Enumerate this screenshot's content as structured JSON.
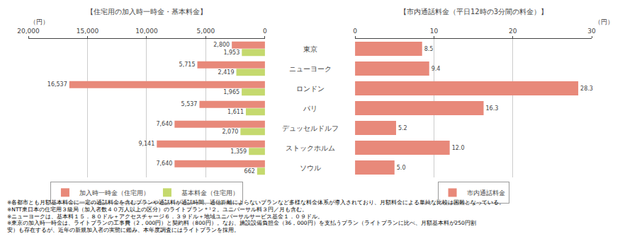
{
  "chart_data": [
    {
      "type": "bar",
      "orientation": "horizontal",
      "title": "【住宅用の加入時一時金・基本料金】",
      "xlabel": "（円）",
      "categories": [
        "東京",
        "ニューヨーク",
        "ロンドン",
        "パリ",
        "デュッセルドルフ",
        "ストックホルム",
        "ソウル"
      ],
      "series": [
        {
          "name": "加入時一時金（住宅用）",
          "color": "#e8897a",
          "values": [
            2800,
            5715,
            16537,
            5537,
            7640,
            9141,
            7640
          ],
          "value_labels": [
            "2,800",
            "5,715",
            "16,537",
            "5,537",
            "7,640",
            "9,141",
            "7,640"
          ]
        },
        {
          "name": "基本料金（住宅用）",
          "color": "#c5d96e",
          "values": [
            1953,
            2419,
            1965,
            1611,
            2070,
            1359,
            662
          ],
          "value_labels": [
            "1,953",
            "2,419",
            "1,965",
            "1,611",
            "2,070",
            "1,359",
            "662"
          ]
        }
      ],
      "xlim": [
        20000,
        0
      ],
      "xticks": [
        {
          "value": 20000,
          "label": "20,000"
        },
        {
          "value": 15000,
          "label": "15,000"
        },
        {
          "value": 10000,
          "label": "10,000"
        },
        {
          "value": 5000,
          "label": "5,000"
        },
        0
      ],
      "grid": true,
      "data_labels": true,
      "legend": "bottom",
      "annotations": [
        "※各都市とも月額基本料金に一定の通話料金を含むプランや通話料が通話時間、通信距離によらないプランなど多様な料金体系が導入されており、月額料金による単純な比較は困難となっている。",
        "※NTT東日本の住宅用３級局（加入者数４０万人以上の区分）のライトプラン＊¹２。ユニバーサル料３円／月も含む。",
        "※ニューヨークは、基本料１５．８０ドル＋アクセスチャージ６．３９ドル＋地域ユニバーサルサービス基金１．０９ドル。",
        "※東京の加入時一時金は、ライトプランの工事費（2，000円）と契約料（800円）。なお、施設設備負担金（36，000円）を支払うプラン（ライトプランに比べ、月額基本料が250円割",
        "安）も存在するが、近年の新規加入者の実態に鑑み、本年度調査にはライトプランを採用。"
      ]
    },
    {
      "type": "bar",
      "orientation": "horizontal",
      "title": "【市内通話料金（平日12時の3分間の料金）】",
      "xlabel": "（円）",
      "categories": [
        "東京",
        "ニューヨーク",
        "ロンドン",
        "パリ",
        "デュッセルドルフ",
        "ストックホルム",
        "ソウル"
      ],
      "series": [
        {
          "name": "市内通話料金",
          "color": "#e8897a",
          "values": [
            8.5,
            9.4,
            28.3,
            16.3,
            5.2,
            12.0,
            5.0
          ],
          "value_labels": [
            "8.5",
            "9.4",
            "28.3",
            "16.3",
            "5.2",
            "12.0",
            "5.0"
          ]
        }
      ],
      "xlim": [
        0,
        30
      ],
      "xticks": [
        0,
        10,
        20,
        30
      ],
      "grid": true,
      "data_labels": true,
      "legend": "bottom"
    }
  ]
}
